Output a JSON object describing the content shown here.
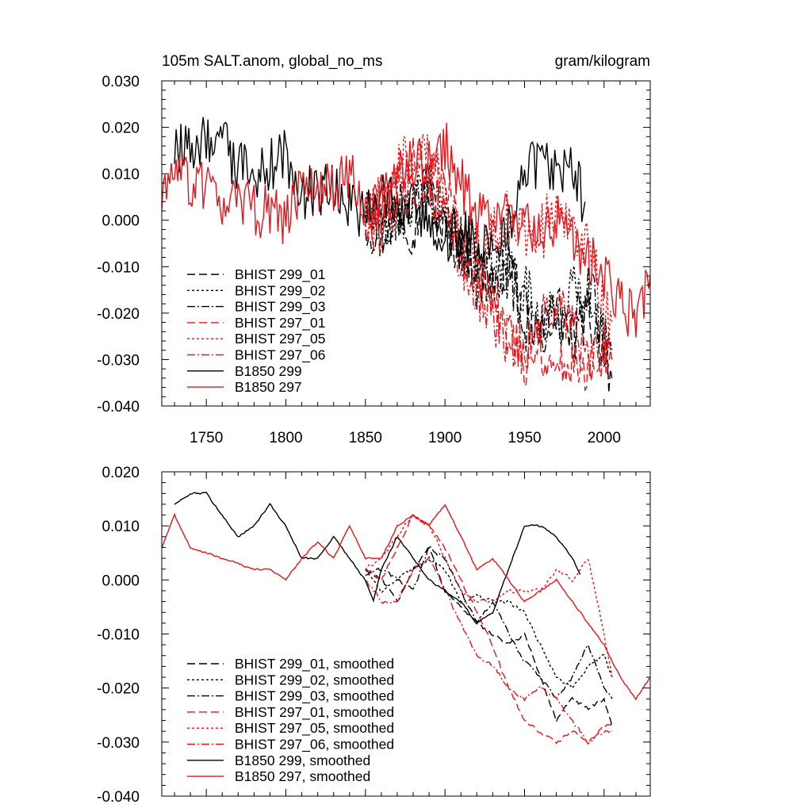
{
  "chart_data": [
    {
      "type": "line",
      "title_left": "105m SALT.anom, global_no_ms",
      "title_right": "gram/kilogram",
      "xlabel": "",
      "ylabel": "",
      "xlim": [
        1722,
        2029
      ],
      "ylim": [
        -0.04,
        0.03
      ],
      "xticks": [
        "1750",
        "1800",
        "1850",
        "1900",
        "1950",
        "2000"
      ],
      "xtick_values": [
        1750,
        1800,
        1850,
        1900,
        1950,
        2000
      ],
      "yticks": [
        "0.030",
        "0.020",
        "0.010",
        "0.000",
        "-0.010",
        "-0.020",
        "-0.030",
        "-0.040"
      ],
      "ytick_values": [
        0.03,
        0.02,
        0.01,
        0.0,
        -0.01,
        -0.02,
        -0.03,
        -0.04
      ],
      "legend": [
        "BHIST 299_01",
        "BHIST 299_02",
        "BHIST 299_03",
        "BHIST 297_01",
        "BHIST 297_05",
        "BHIST 297_06",
        "B1850 299",
        "B1850 297"
      ],
      "legend_placement": "bottom-left",
      "series": [
        {
          "name": "BHIST 299_01",
          "color": "#000000",
          "dash": "long-dash",
          "x": [
            1850,
            1860,
            1870,
            1880,
            1890,
            1900,
            1910,
            1920,
            1930,
            1940,
            1950,
            1960,
            1970,
            1980,
            1990,
            2000,
            2005
          ],
          "y": [
            0.0,
            -0.004,
            0.004,
            -0.002,
            0.006,
            -0.003,
            -0.006,
            -0.01,
            -0.014,
            -0.008,
            -0.02,
            -0.025,
            -0.018,
            -0.026,
            -0.02,
            -0.028,
            -0.034
          ],
          "noise": 0.006
        },
        {
          "name": "BHIST 299_02",
          "color": "#000000",
          "dash": "short-dash",
          "x": [
            1850,
            1860,
            1870,
            1880,
            1890,
            1900,
            1910,
            1920,
            1930,
            1940,
            1950,
            1960,
            1970,
            1980,
            1990,
            2000,
            2005
          ],
          "y": [
            0.002,
            -0.002,
            0.0,
            0.004,
            0.006,
            0.0,
            -0.005,
            -0.008,
            -0.012,
            -0.008,
            -0.015,
            -0.02,
            -0.022,
            -0.014,
            -0.02,
            -0.024,
            -0.03
          ],
          "noise": 0.006
        },
        {
          "name": "BHIST 299_03",
          "color": "#000000",
          "dash": "dash-dot",
          "x": [
            1850,
            1860,
            1870,
            1880,
            1890,
            1900,
            1910,
            1920,
            1930,
            1940,
            1950,
            1960,
            1970,
            1980,
            1990,
            2000,
            2005
          ],
          "y": [
            0.001,
            -0.003,
            0.002,
            0.004,
            0.008,
            -0.002,
            -0.004,
            -0.014,
            -0.01,
            -0.012,
            -0.022,
            -0.026,
            -0.02,
            -0.026,
            -0.014,
            -0.025,
            -0.028
          ],
          "noise": 0.006
        },
        {
          "name": "BHIST 297_01",
          "color": "#e8141a",
          "dash": "long-dash",
          "x": [
            1850,
            1860,
            1870,
            1880,
            1890,
            1900,
            1910,
            1920,
            1930,
            1940,
            1950,
            1960,
            1970,
            1980,
            1990,
            2000,
            2005
          ],
          "y": [
            0.001,
            0.003,
            0.008,
            0.012,
            0.01,
            0.006,
            -0.002,
            -0.012,
            -0.016,
            -0.024,
            -0.03,
            -0.028,
            -0.032,
            -0.03,
            -0.032,
            -0.026,
            -0.03
          ],
          "noise": 0.006
        },
        {
          "name": "BHIST 297_05",
          "color": "#e8141a",
          "dash": "short-dash",
          "x": [
            1850,
            1860,
            1870,
            1880,
            1890,
            1900,
            1910,
            1920,
            1930,
            1940,
            1950,
            1960,
            1970,
            1980,
            1990,
            2000,
            2005
          ],
          "y": [
            0.0,
            0.004,
            0.01,
            0.014,
            0.012,
            0.006,
            0.0,
            -0.006,
            -0.004,
            0.0,
            -0.002,
            -0.002,
            0.0,
            0.002,
            -0.008,
            -0.018,
            -0.022
          ],
          "noise": 0.007
        },
        {
          "name": "BHIST 297_06",
          "color": "#e8141a",
          "dash": "dash-dot",
          "x": [
            1850,
            1860,
            1870,
            1880,
            1890,
            1900,
            1910,
            1920,
            1930,
            1940,
            1950,
            1960,
            1970,
            1980,
            1990,
            2000,
            2005
          ],
          "y": [
            0.0,
            -0.002,
            0.004,
            0.008,
            0.006,
            0.002,
            -0.008,
            -0.016,
            -0.022,
            -0.026,
            -0.028,
            -0.022,
            -0.018,
            -0.024,
            -0.03,
            -0.028,
            -0.03
          ],
          "noise": 0.006
        },
        {
          "name": "B1850 299",
          "color": "#000000",
          "dash": "solid",
          "x": [
            1730,
            1740,
            1750,
            1760,
            1770,
            1780,
            1790,
            1800,
            1810,
            1820,
            1830,
            1840,
            1850,
            1860,
            1870,
            1880,
            1890,
            1900,
            1910,
            1920,
            1930,
            1940,
            1950,
            1960,
            1970,
            1980,
            1988
          ],
          "y": [
            0.014,
            0.016,
            0.018,
            0.016,
            0.012,
            0.008,
            0.012,
            0.014,
            0.006,
            0.006,
            0.008,
            0.004,
            0.0,
            0.006,
            0.002,
            0.002,
            0.0,
            -0.004,
            -0.002,
            -0.006,
            -0.006,
            0.0,
            0.01,
            0.012,
            0.012,
            0.01,
            0.004
          ],
          "noise": 0.006
        },
        {
          "name": "B1850 297",
          "color": "#e8141a",
          "dash": "solid",
          "x": [
            1722,
            1730,
            1740,
            1750,
            1760,
            1770,
            1780,
            1790,
            1800,
            1810,
            1820,
            1830,
            1840,
            1850,
            1860,
            1870,
            1880,
            1890,
            1900,
            1910,
            1920,
            1930,
            1940,
            1950,
            1960,
            1970,
            1980,
            1990,
            2000,
            2010,
            2020,
            2029
          ],
          "y": [
            0.004,
            0.012,
            0.008,
            0.006,
            0.004,
            0.004,
            0.002,
            0.002,
            0.0,
            0.006,
            0.008,
            0.006,
            0.01,
            0.004,
            0.004,
            0.01,
            0.012,
            0.012,
            0.016,
            0.008,
            0.0,
            0.004,
            0.0,
            0.0,
            -0.004,
            0.0,
            -0.004,
            -0.008,
            -0.012,
            -0.018,
            -0.022,
            -0.012
          ],
          "noise": 0.006
        }
      ]
    },
    {
      "type": "line",
      "title_left": "",
      "title_right": "",
      "xlabel": "",
      "ylabel": "",
      "xlim": [
        1722,
        2029
      ],
      "ylim": [
        -0.04,
        0.02
      ],
      "xticks": [],
      "xtick_values": [
        1750,
        1800,
        1850,
        1900,
        1950,
        2000
      ],
      "yticks": [
        "0.020",
        "0.010",
        "0.000",
        "-0.010",
        "-0.020",
        "-0.030",
        "-0.040"
      ],
      "ytick_values": [
        0.02,
        0.01,
        0.0,
        -0.01,
        -0.02,
        -0.03,
        -0.04
      ],
      "legend": [
        "BHIST 299_01, smoothed",
        "BHIST 299_02, smoothed",
        "BHIST 299_03, smoothed",
        "BHIST 297_01, smoothed",
        "BHIST 297_05, smoothed",
        "BHIST 297_06, smoothed",
        "B1850 299, smoothed",
        "B1850 297, smoothed"
      ],
      "legend_placement": "bottom-left",
      "series": [
        {
          "name": "BHIST 299_01, smoothed",
          "color": "#000000",
          "dash": "long-dash",
          "x": [
            1850,
            1860,
            1870,
            1880,
            1890,
            1900,
            1910,
            1920,
            1930,
            1940,
            1950,
            1960,
            1970,
            1980,
            1990,
            2000,
            2005
          ],
          "y": [
            0.002,
            0.0,
            -0.004,
            0.002,
            0.006,
            -0.002,
            -0.005,
            -0.008,
            -0.01,
            -0.012,
            -0.01,
            -0.018,
            -0.026,
            -0.022,
            -0.024,
            -0.022,
            -0.027
          ],
          "noise": 0.001
        },
        {
          "name": "BHIST 299_02, smoothed",
          "color": "#000000",
          "dash": "short-dash",
          "x": [
            1850,
            1860,
            1870,
            1880,
            1890,
            1900,
            1910,
            1920,
            1930,
            1940,
            1950,
            1960,
            1970,
            1980,
            1990,
            2000,
            2005
          ],
          "y": [
            0.002,
            -0.002,
            0.0,
            0.002,
            0.004,
            0.002,
            -0.004,
            -0.003,
            -0.004,
            -0.004,
            -0.006,
            -0.012,
            -0.018,
            -0.02,
            -0.016,
            -0.014,
            -0.018
          ],
          "noise": 0.001
        },
        {
          "name": "BHIST 299_03, smoothed",
          "color": "#000000",
          "dash": "dash-dot",
          "x": [
            1850,
            1860,
            1870,
            1880,
            1890,
            1900,
            1910,
            1920,
            1930,
            1940,
            1950,
            1960,
            1970,
            1980,
            1990,
            2000,
            2005
          ],
          "y": [
            0.001,
            0.002,
            0.0,
            -0.002,
            0.006,
            0.004,
            -0.002,
            -0.008,
            -0.004,
            -0.01,
            -0.015,
            -0.018,
            -0.022,
            -0.018,
            -0.012,
            -0.02,
            -0.022
          ],
          "noise": 0.001
        },
        {
          "name": "BHIST 297_01, smoothed",
          "color": "#e8141a",
          "dash": "long-dash",
          "x": [
            1850,
            1860,
            1870,
            1880,
            1890,
            1900,
            1910,
            1920,
            1930,
            1940,
            1950,
            1960,
            1970,
            1980,
            1990,
            2000,
            2005
          ],
          "y": [
            0.002,
            0.0,
            0.006,
            0.012,
            0.01,
            0.006,
            0.0,
            -0.006,
            -0.012,
            -0.02,
            -0.026,
            -0.028,
            -0.03,
            -0.028,
            -0.03,
            -0.027,
            -0.027
          ],
          "noise": 0.001
        },
        {
          "name": "BHIST 297_05, smoothed",
          "color": "#e8141a",
          "dash": "short-dash",
          "x": [
            1850,
            1860,
            1870,
            1880,
            1890,
            1900,
            1910,
            1920,
            1930,
            1940,
            1950,
            1960,
            1970,
            1980,
            1990,
            2000,
            2005
          ],
          "y": [
            0.002,
            0.004,
            0.008,
            0.012,
            0.01,
            0.004,
            -0.002,
            -0.004,
            -0.004,
            -0.002,
            -0.002,
            -0.002,
            0.002,
            0.0,
            0.004,
            -0.01,
            -0.018
          ],
          "noise": 0.001
        },
        {
          "name": "BHIST 297_06, smoothed",
          "color": "#e8141a",
          "dash": "dash-dot",
          "x": [
            1850,
            1860,
            1870,
            1880,
            1890,
            1900,
            1910,
            1920,
            1930,
            1940,
            1950,
            1960,
            1970,
            1980,
            1990,
            2000,
            2005
          ],
          "y": [
            0.0,
            -0.004,
            -0.004,
            0.002,
            0.004,
            -0.002,
            -0.008,
            -0.014,
            -0.016,
            -0.02,
            -0.022,
            -0.02,
            -0.022,
            -0.026,
            -0.03,
            -0.028,
            -0.028
          ],
          "noise": 0.001
        },
        {
          "name": "B1850 299, smoothed",
          "color": "#000000",
          "dash": "solid",
          "x": [
            1730,
            1740,
            1750,
            1760,
            1770,
            1780,
            1790,
            1800,
            1810,
            1820,
            1830,
            1840,
            1850,
            1855,
            1860,
            1870,
            1880,
            1890,
            1900,
            1910,
            1920,
            1930,
            1940,
            1950,
            1960,
            1970,
            1980,
            1985
          ],
          "y": [
            0.014,
            0.016,
            0.016,
            0.012,
            0.008,
            0.01,
            0.014,
            0.01,
            0.004,
            0.004,
            0.008,
            0.004,
            0.0,
            -0.004,
            0.002,
            0.008,
            0.004,
            0.0,
            -0.002,
            -0.004,
            -0.008,
            -0.006,
            0.002,
            0.01,
            0.01,
            0.008,
            0.004,
            0.001
          ],
          "noise": 0.0005
        },
        {
          "name": "B1850 297, smoothed",
          "color": "#e8141a",
          "dash": "solid",
          "x": [
            1722,
            1730,
            1740,
            1750,
            1760,
            1770,
            1780,
            1790,
            1800,
            1810,
            1820,
            1830,
            1840,
            1850,
            1860,
            1870,
            1880,
            1890,
            1900,
            1910,
            1920,
            1930,
            1940,
            1950,
            1960,
            1970,
            1980,
            1990,
            2000,
            2010,
            2020,
            2029
          ],
          "y": [
            0.006,
            0.012,
            0.006,
            0.005,
            0.004,
            0.003,
            0.002,
            0.002,
            0.0,
            0.004,
            0.007,
            0.004,
            0.01,
            0.004,
            0.004,
            0.01,
            0.012,
            0.01,
            0.014,
            0.008,
            0.002,
            0.004,
            0.0,
            -0.004,
            -0.002,
            0.0,
            -0.004,
            -0.008,
            -0.012,
            -0.018,
            -0.022,
            -0.018
          ],
          "noise": 0.0005
        }
      ]
    }
  ],
  "colors": {
    "black": "#000000",
    "red": "#e8141a"
  }
}
